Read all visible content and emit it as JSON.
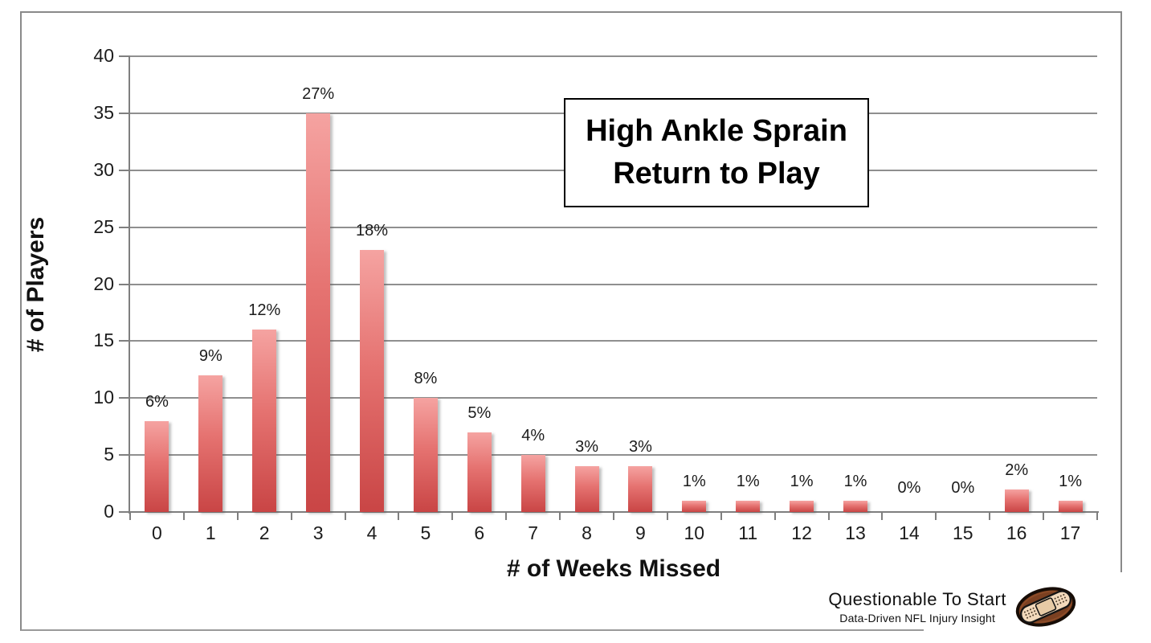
{
  "chart_data": {
    "type": "bar",
    "title": "High Ankle Sprain Return to Play",
    "categories": [
      "0",
      "1",
      "2",
      "3",
      "4",
      "5",
      "6",
      "7",
      "8",
      "9",
      "10",
      "11",
      "12",
      "13",
      "14",
      "15",
      "16",
      "17"
    ],
    "values": [
      8,
      12,
      16,
      35,
      23,
      10,
      7,
      5,
      4,
      4,
      1,
      1,
      1,
      1,
      0,
      0,
      2,
      1
    ],
    "bar_labels": [
      "6%",
      "9%",
      "12%",
      "27%",
      "18%",
      "8%",
      "5%",
      "4%",
      "3%",
      "3%",
      "1%",
      "1%",
      "1%",
      "1%",
      "0%",
      "0%",
      "2%",
      "1%"
    ],
    "xlabel": "# of Weeks Missed",
    "ylabel": "# of Players",
    "ylim": [
      0,
      40
    ],
    "ytick_step": 5,
    "yticks": [
      0,
      5,
      10,
      15,
      20,
      25,
      30,
      35,
      40
    ],
    "grid": true,
    "legend": "none",
    "bar_color_top": "#f5a3a1",
    "bar_color_bottom": "#c94545",
    "gridline_color": "#8f8f8f",
    "axis_color": "#7f7f7f"
  },
  "title_box": {
    "line1": "High Ankle Sprain",
    "line2": "Return to Play"
  },
  "branding": {
    "name": "Questionable To Start",
    "tagline": "Data-Driven NFL Injury Insight",
    "icon": "football-bandage-icon",
    "football_color": "#7b4021",
    "bandage_color": "#f2d9bb"
  }
}
